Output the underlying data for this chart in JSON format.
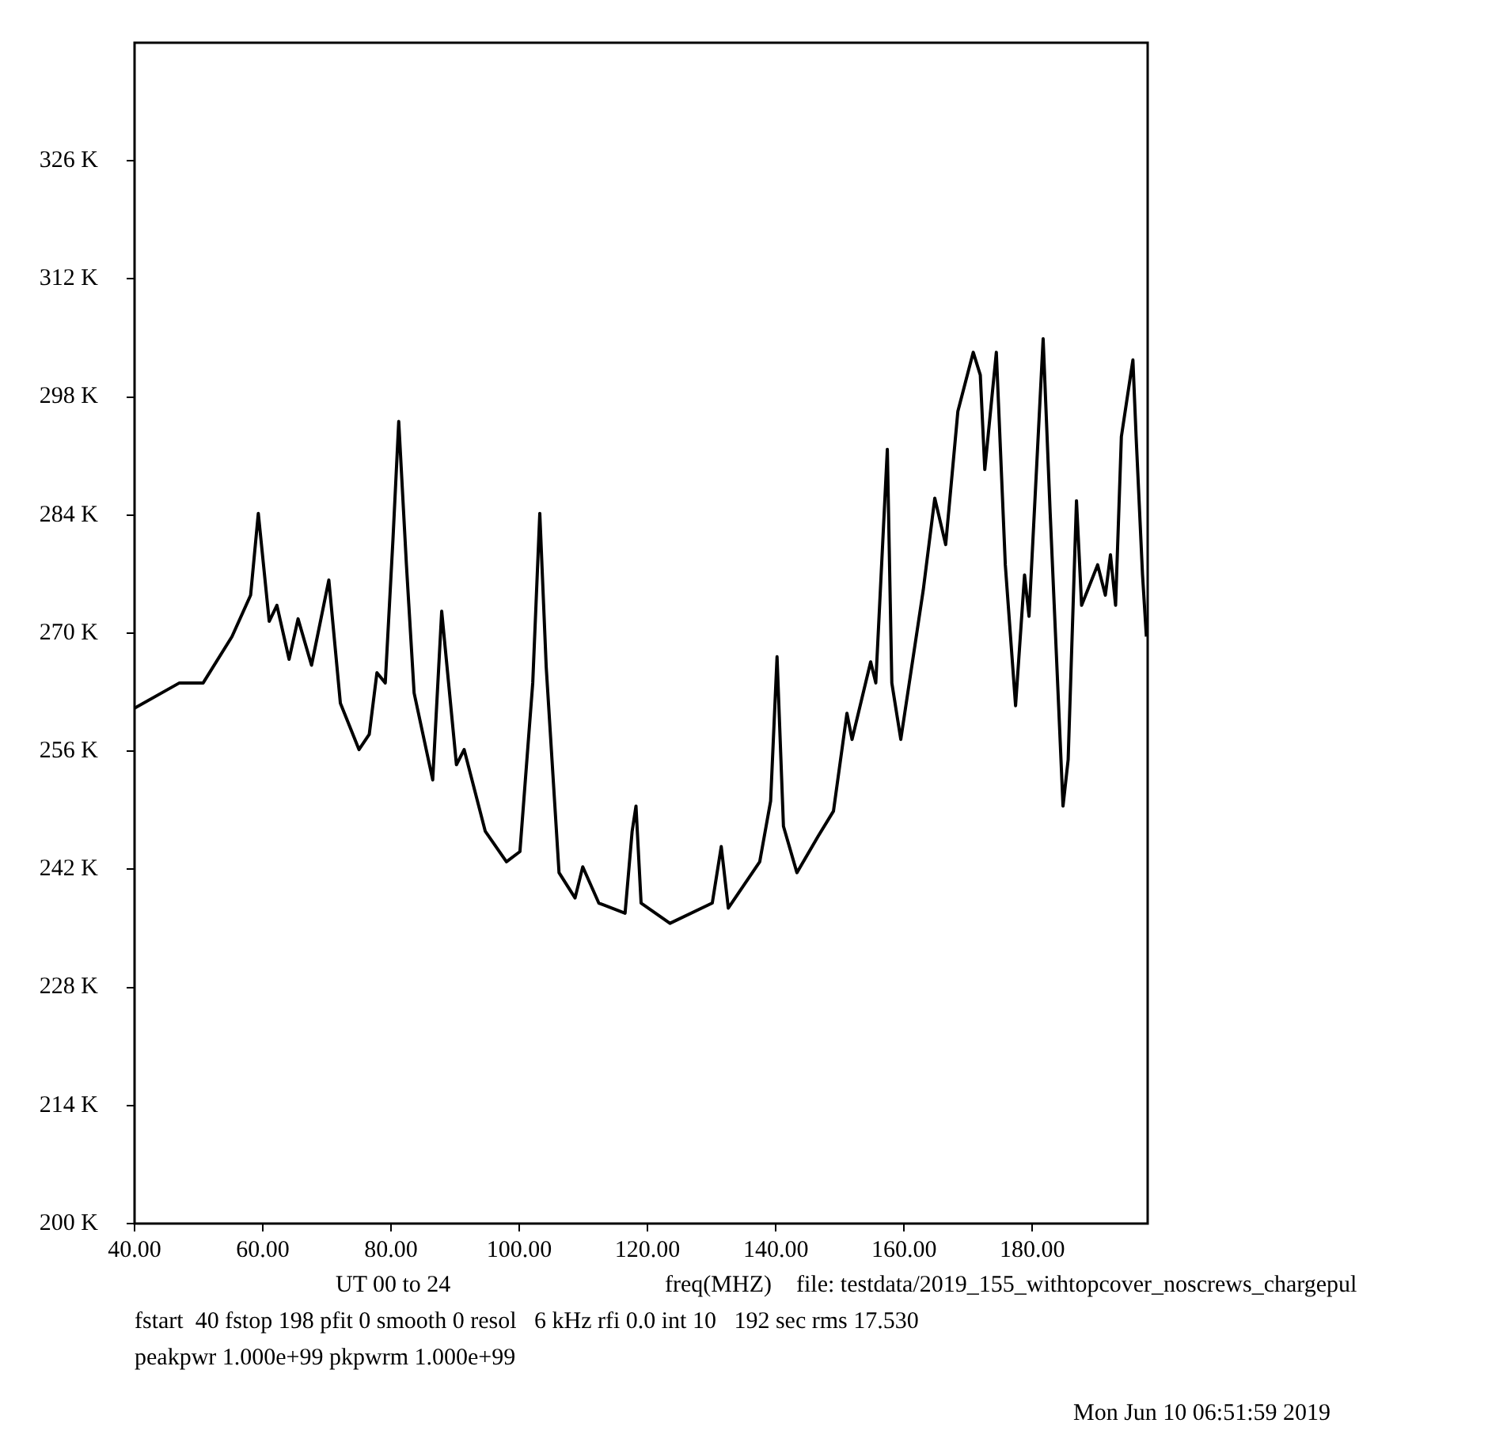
{
  "chart_data": {
    "type": "line",
    "xlabel": "freq(MHZ)",
    "annotations": [
      "UT 00 to 24",
      "file: testdata/2019_155_withtopcover_noscrews_chargepul",
      "fstart  40 fstop 198 pfit 0 smooth 0 resol   6 kHz rfi 0.0 int 10   192 sec rms 17.530",
      "peakpwr 1.000e+99 pkpwrm 1.000e+99",
      "Mon Jun 10 06:51:59 2019"
    ],
    "xlim": [
      40,
      198
    ],
    "xticks": [
      {
        "value": 40,
        "label": "40.00"
      },
      {
        "value": 60,
        "label": "60.00"
      },
      {
        "value": 80,
        "label": "80.00"
      },
      {
        "value": 100,
        "label": "100.00"
      },
      {
        "value": 120,
        "label": "120.00"
      },
      {
        "value": 140,
        "label": "140.00"
      },
      {
        "value": 160,
        "label": "160.00"
      },
      {
        "value": 180,
        "label": "180.00"
      }
    ],
    "ylim": [
      200,
      340
    ],
    "yticks": [
      {
        "value": 200,
        "label": "200 K"
      },
      {
        "value": 214,
        "label": "214 K"
      },
      {
        "value": 228,
        "label": "228 K"
      },
      {
        "value": 242,
        "label": "242 K"
      },
      {
        "value": 256,
        "label": "256 K"
      },
      {
        "value": 270,
        "label": "270 K"
      },
      {
        "value": 284,
        "label": "284 K"
      },
      {
        "value": 298,
        "label": "298 K"
      },
      {
        "value": 312,
        "label": "312 K"
      },
      {
        "value": 326,
        "label": "326 K"
      }
    ],
    "marker": "none",
    "line_style": "solid",
    "legend": false,
    "series": [
      {
        "color": "#000000",
        "x": [
          40.0,
          47.0,
          50.7,
          55.2,
          58.1,
          59.3,
          61.0,
          62.2,
          64.1,
          65.5,
          67.6,
          70.3,
          72.1,
          75.0,
          76.6,
          77.8,
          79.1,
          80.3,
          81.2,
          82.4,
          83.6,
          86.5,
          87.9,
          90.2,
          91.4,
          94.7,
          98.0,
          100.1,
          102.1,
          103.2,
          104.2,
          106.2,
          108.7,
          109.9,
          112.4,
          116.5,
          117.6,
          118.2,
          119.0,
          123.5,
          130.1,
          131.5,
          132.6,
          137.5,
          139.2,
          140.2,
          141.2,
          143.3,
          146.6,
          149.0,
          151.1,
          151.9,
          154.8,
          155.6,
          157.4,
          158.1,
          159.5,
          163.0,
          164.8,
          166.5,
          168.4,
          170.8,
          171.9,
          172.6,
          174.4,
          175.8,
          177.4,
          178.8,
          179.5,
          181.7,
          182.8,
          184.8,
          185.6,
          186.9,
          187.7,
          190.2,
          191.4,
          192.2,
          193.0,
          193.9,
          195.7,
          196.2,
          197.2,
          197.8
        ],
        "values": [
          261.1,
          264.1,
          264.1,
          269.6,
          274.5,
          284.2,
          271.4,
          273.3,
          266.9,
          271.7,
          266.2,
          276.3,
          261.7,
          256.2,
          258.0,
          265.3,
          264.1,
          281.1,
          295.1,
          278.1,
          262.9,
          252.6,
          272.6,
          254.4,
          256.2,
          246.5,
          242.9,
          244.1,
          264.1,
          284.2,
          266.0,
          241.6,
          238.6,
          242.3,
          238.0,
          236.8,
          246.5,
          249.5,
          238.0,
          235.6,
          238.0,
          244.7,
          237.4,
          242.9,
          250.1,
          267.2,
          247.1,
          241.6,
          245.9,
          248.9,
          260.5,
          257.4,
          266.6,
          264.1,
          291.8,
          264.1,
          257.4,
          275.1,
          286.0,
          280.5,
          296.3,
          303.3,
          300.6,
          289.4,
          303.3,
          278.1,
          261.4,
          276.9,
          272.0,
          304.9,
          284.2,
          249.5,
          255.0,
          285.7,
          273.3,
          278.1,
          274.5,
          279.3,
          273.3,
          293.3,
          302.4,
          293.3,
          276.9,
          269.6
        ]
      }
    ]
  }
}
